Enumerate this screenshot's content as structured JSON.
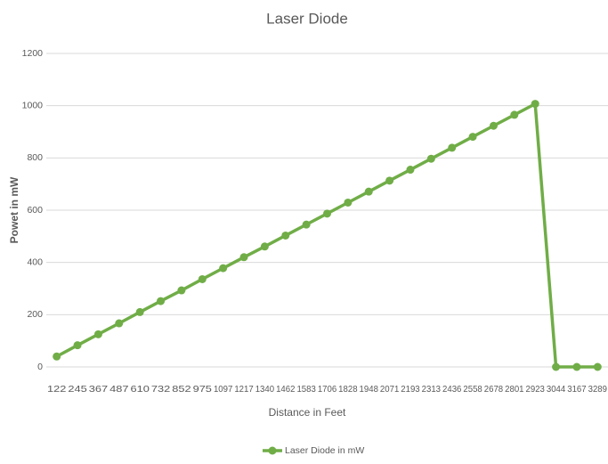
{
  "chart_data": {
    "type": "line",
    "title": "Laser Diode",
    "x_label": "Distance in Feet",
    "y_label": "Powet in mW",
    "categories": [
      "122",
      "245",
      "367",
      "487",
      "610",
      "732",
      "852",
      "975",
      "1097",
      "1217",
      "1340",
      "1462",
      "1583",
      "1706",
      "1828",
      "1948",
      "2071",
      "2193",
      "2313",
      "2436",
      "2558",
      "2678",
      "2801",
      "2923",
      "3044",
      "3167",
      "3289"
    ],
    "series": [
      {
        "name": "Laser Diode in mW",
        "color": "#70ad47",
        "values": [
          40,
          83,
          125,
          167,
          210,
          252,
          293,
          336,
          378,
          420,
          461,
          503,
          545,
          587,
          629,
          671,
          713,
          755,
          797,
          839,
          881,
          923,
          965,
          1007,
          0,
          0,
          0
        ]
      }
    ],
    "ylim": [
      0,
      1200
    ],
    "yticks": [
      0,
      200,
      400,
      600,
      800,
      1000,
      1200
    ],
    "grid": true,
    "legend": "bottom"
  }
}
